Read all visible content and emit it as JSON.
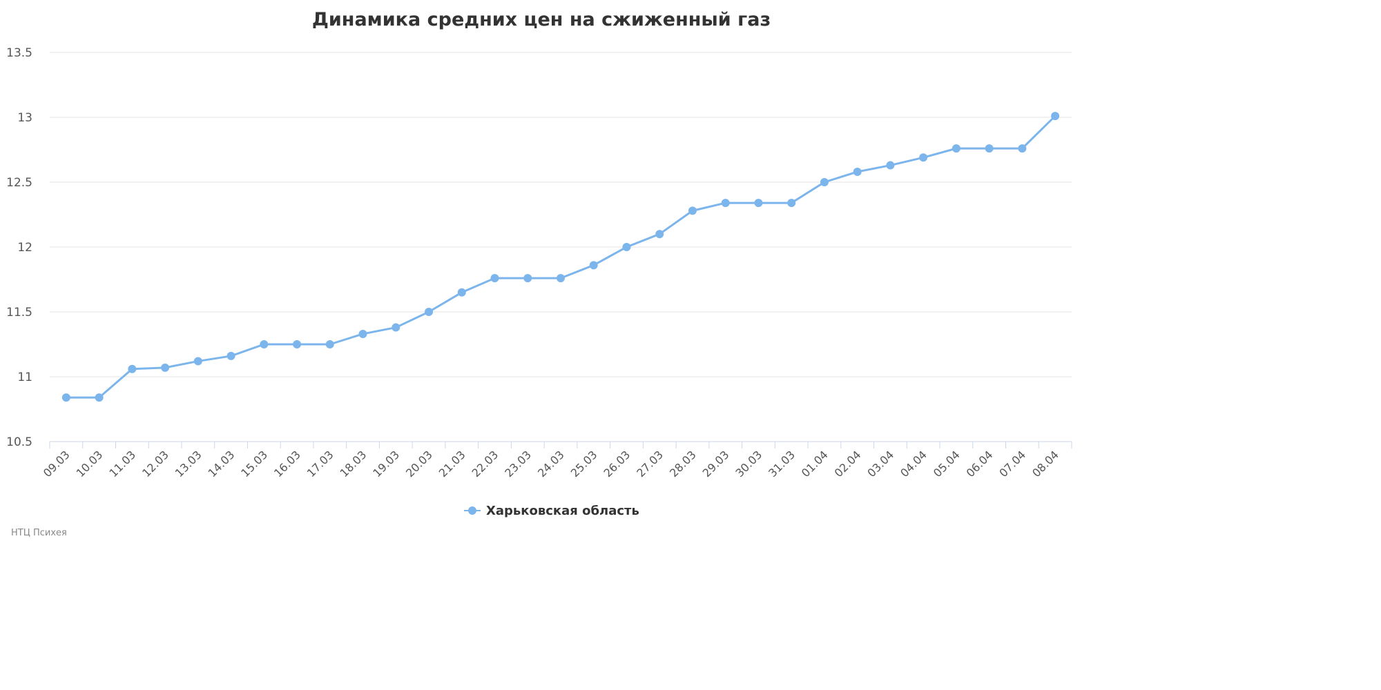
{
  "chart_data": {
    "type": "line",
    "title": "Динамика средних цен на сжиженный газ",
    "xlabel": "",
    "ylabel": "",
    "categories": [
      "09.03",
      "10.03",
      "11.03",
      "12.03",
      "13.03",
      "14.03",
      "15.03",
      "16.03",
      "17.03",
      "18.03",
      "19.03",
      "20.03",
      "21.03",
      "22.03",
      "23.03",
      "24.03",
      "25.03",
      "26.03",
      "27.03",
      "28.03",
      "29.03",
      "30.03",
      "31.03",
      "01.04",
      "02.04",
      "03.04",
      "04.04",
      "05.04",
      "06.04",
      "07.04",
      "08.04"
    ],
    "series": [
      {
        "name": "Харьковская область",
        "color": "#7cb5ec",
        "values": [
          10.84,
          10.84,
          11.06,
          11.07,
          11.12,
          11.16,
          11.25,
          11.25,
          11.25,
          11.33,
          11.38,
          11.5,
          11.65,
          11.76,
          11.76,
          11.76,
          11.86,
          12.0,
          12.1,
          12.28,
          12.34,
          12.34,
          12.34,
          12.5,
          12.58,
          12.63,
          12.69,
          12.76,
          12.76,
          12.76,
          13.01
        ]
      }
    ],
    "ylim": [
      10.5,
      13.5
    ],
    "yticks": [
      "10.5",
      "11",
      "11.5",
      "12",
      "12.5",
      "13",
      "13.5"
    ],
    "grid": true,
    "legend_position": "bottom-center"
  },
  "credits": "НТЦ Психея"
}
